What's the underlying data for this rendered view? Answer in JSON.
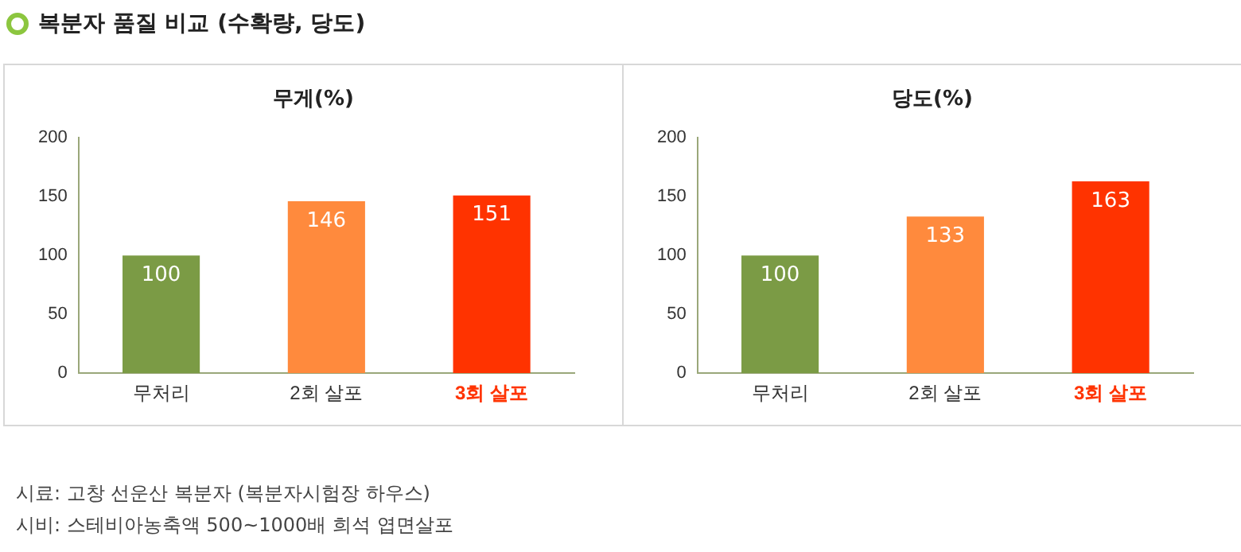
{
  "chart_data": [
    {
      "type": "bar",
      "title": "무게(%)",
      "categories": [
        "무처리",
        "2회 살포",
        "3회 살포"
      ],
      "values": [
        100,
        146,
        151
      ],
      "colors": [
        "#7b9b45",
        "#ff8a3d",
        "#ff3300"
      ],
      "ylim": [
        0,
        200
      ],
      "yticks": [
        0,
        50,
        100,
        150,
        200
      ],
      "grid": false,
      "legend": false,
      "data_labels": true,
      "annotations": [
        "복분자 품질 비교 (수확량, 당도)",
        "시료: 고창 선운산 복분자 (복분자시험장 하우스)",
        "시비: 스테비아농축액 500~1000배 희석 엽면살포"
      ]
    },
    {
      "type": "bar",
      "title": "당도(%)",
      "categories": [
        "무처리",
        "2회 살포",
        "3회 살포"
      ],
      "values": [
        100,
        133,
        163
      ],
      "colors": [
        "#7b9b45",
        "#ff8a3d",
        "#ff3300"
      ],
      "ylim": [
        0,
        200
      ],
      "yticks": [
        0,
        50,
        100,
        150,
        200
      ],
      "grid": false,
      "legend": false,
      "data_labels": true
    }
  ]
}
